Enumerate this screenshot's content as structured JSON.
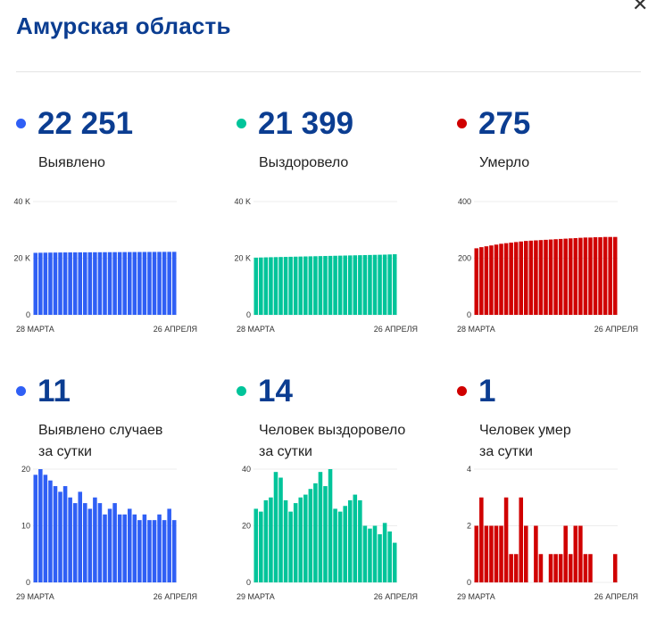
{
  "header": {
    "title": "Амурская область",
    "close_symbol": "✕"
  },
  "panels": [
    {
      "value": "22 251",
      "label": "Выявлено",
      "color": "#2f5ff5",
      "chart_data": {
        "type": "bar",
        "ylim": [
          0,
          40000
        ],
        "yticks": [
          "40 K",
          "20 K",
          "0"
        ],
        "ytick_values": [
          40000,
          20000,
          0
        ],
        "xlabel_start": "28 МАРТА",
        "xlabel_end": "26 АПРЕЛЯ",
        "values": [
          21900,
          21930,
          21960,
          21980,
          22000,
          22020,
          22040,
          22050,
          22060,
          22070,
          22080,
          22090,
          22100,
          22110,
          22120,
          22130,
          22140,
          22150,
          22160,
          22170,
          22180,
          22190,
          22200,
          22210,
          22220,
          22230,
          22240,
          22245,
          22251
        ]
      }
    },
    {
      "value": "21 399",
      "label": "Выздоровело",
      "color": "#00c49a",
      "chart_data": {
        "type": "bar",
        "ylim": [
          0,
          40000
        ],
        "yticks": [
          "40 K",
          "20 K",
          "0"
        ],
        "ytick_values": [
          40000,
          20000,
          0
        ],
        "xlabel_start": "28 МАРТА",
        "xlabel_end": "26 АПРЕЛЯ",
        "values": [
          20200,
          20250,
          20300,
          20340,
          20380,
          20420,
          20460,
          20500,
          20540,
          20580,
          20620,
          20660,
          20700,
          20740,
          20780,
          20820,
          20860,
          20900,
          20940,
          20980,
          21020,
          21060,
          21100,
          21140,
          21180,
          21220,
          21260,
          21330,
          21399
        ]
      }
    },
    {
      "value": "275",
      "label": "Умерло",
      "color": "#d00000",
      "chart_data": {
        "type": "bar",
        "ylim": [
          0,
          400
        ],
        "yticks": [
          "400",
          "200",
          "0"
        ],
        "ytick_values": [
          400,
          200,
          0
        ],
        "xlabel_start": "28 МАРТА",
        "xlabel_end": "26 АПРЕЛЯ",
        "values": [
          235,
          239,
          242,
          245,
          248,
          251,
          253,
          255,
          257,
          259,
          261,
          262,
          263,
          264,
          265,
          266,
          267,
          268,
          269,
          270,
          271,
          272,
          273,
          273,
          274,
          274,
          275,
          275,
          275
        ]
      }
    },
    {
      "value": "11",
      "label": "Выявлено случаев\nза сутки",
      "color": "#2f5ff5",
      "chart_data": {
        "type": "bar",
        "ylim": [
          0,
          20
        ],
        "yticks": [
          "20",
          "10",
          "0"
        ],
        "ytick_values": [
          20,
          10,
          0
        ],
        "xlabel_start": "29 МАРТА",
        "xlabel_end": "26 АПРЕЛЯ",
        "values": [
          19,
          20,
          19,
          18,
          17,
          16,
          17,
          15,
          14,
          16,
          14,
          13,
          15,
          14,
          12,
          13,
          14,
          12,
          12,
          13,
          12,
          11,
          12,
          11,
          11,
          12,
          11,
          13,
          11
        ]
      }
    },
    {
      "value": "14",
      "label": "Человек выздоровело\nза сутки",
      "color": "#00c49a",
      "chart_data": {
        "type": "bar",
        "ylim": [
          0,
          40
        ],
        "yticks": [
          "40",
          "20",
          "0"
        ],
        "ytick_values": [
          40,
          20,
          0
        ],
        "xlabel_start": "29 МАРТА",
        "xlabel_end": "26 АПРЕЛЯ",
        "values": [
          26,
          25,
          29,
          30,
          39,
          37,
          29,
          25,
          28,
          30,
          31,
          33,
          35,
          39,
          34,
          40,
          26,
          25,
          27,
          29,
          31,
          29,
          20,
          19,
          20,
          17,
          21,
          18,
          14
        ]
      }
    },
    {
      "value": "1",
      "label": "Человек умер\nза сутки",
      "color": "#d00000",
      "chart_data": {
        "type": "bar",
        "ylim": [
          0,
          4
        ],
        "yticks": [
          "4",
          "2",
          "0"
        ],
        "ytick_values": [
          4,
          2,
          0
        ],
        "xlabel_start": "29 МАРТА",
        "xlabel_end": "26 АПРЕЛЯ",
        "values": [
          2,
          3,
          2,
          2,
          2,
          2,
          3,
          1,
          1,
          3,
          2,
          0,
          2,
          1,
          0,
          1,
          1,
          1,
          2,
          1,
          2,
          2,
          1,
          1,
          0,
          0,
          0,
          0,
          1
        ]
      }
    }
  ]
}
